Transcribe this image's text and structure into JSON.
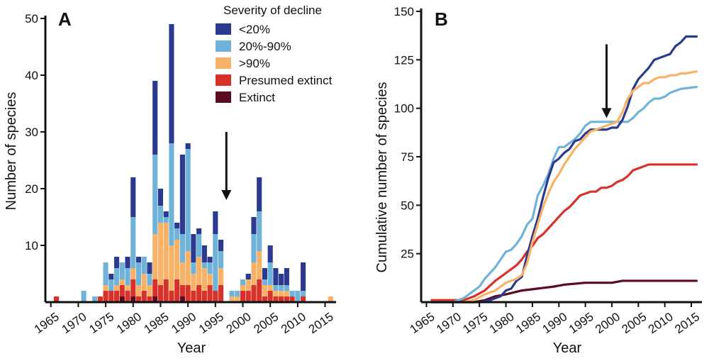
{
  "panel_a_label": "A",
  "panel_b_label": "B",
  "colors": {
    "lt20": "#2b3a8f",
    "p20to90": "#6fb3d9",
    "gt90": "#f7b267",
    "presumed": "#d7312a",
    "extinct": "#5c0a1f",
    "axis": "#111111"
  },
  "chart_data": [
    {
      "type": "bar",
      "stacked": true,
      "panel": "A",
      "xlabel": "Year",
      "ylabel": "Number of species",
      "xlim": [
        1964,
        2017
      ],
      "ylim": [
        0,
        50
      ],
      "xticks": [
        1965,
        1970,
        1975,
        1980,
        1985,
        1990,
        1995,
        2000,
        2005,
        2010,
        2015
      ],
      "yticks": [
        10,
        20,
        30,
        40,
        50
      ],
      "legend": {
        "title": "Severity of decline",
        "placement": "top-right",
        "entries": [
          "<20%",
          "20%-90%",
          ">90%",
          "Presumed extinct",
          "Extinct"
        ]
      },
      "annotation": {
        "type": "arrow",
        "year": 1997,
        "y_top": 30,
        "y_bottom": 18
      },
      "years": [
        1966,
        1967,
        1968,
        1969,
        1970,
        1971,
        1972,
        1973,
        1974,
        1975,
        1976,
        1977,
        1978,
        1979,
        1980,
        1981,
        1982,
        1983,
        1984,
        1985,
        1986,
        1987,
        1988,
        1989,
        1990,
        1991,
        1992,
        1993,
        1994,
        1995,
        1996,
        1997,
        1998,
        1999,
        2000,
        2001,
        2002,
        2003,
        2004,
        2005,
        2006,
        2007,
        2008,
        2009,
        2010,
        2011,
        2012,
        2013,
        2014,
        2015,
        2016
      ],
      "series": [
        {
          "name": "Extinct",
          "color_key": "extinct",
          "values": [
            0,
            0,
            0,
            0,
            0,
            0,
            0,
            0,
            0,
            0,
            0,
            0,
            1,
            0,
            1,
            0,
            0,
            0,
            1,
            0,
            0,
            0,
            0,
            1,
            0,
            0,
            0,
            0,
            0,
            0,
            0,
            0,
            0,
            0,
            0,
            0,
            0,
            0,
            0,
            0,
            0,
            0,
            0,
            0,
            0,
            0,
            0,
            0,
            0,
            0,
            0
          ]
        },
        {
          "name": "Presumed extinct",
          "color_key": "presumed",
          "values": [
            1,
            0,
            0,
            0,
            0,
            0,
            0,
            0,
            1,
            2,
            2,
            2,
            2,
            2,
            3,
            1,
            2,
            1,
            3,
            3,
            4,
            2,
            4,
            2,
            3,
            2,
            3,
            2,
            3,
            2,
            3,
            0,
            0,
            0,
            2,
            2,
            3,
            4,
            1,
            2,
            1,
            1,
            1,
            1,
            0,
            1,
            0,
            0,
            0,
            0,
            0
          ]
        },
        {
          "name": ">90%",
          "color_key": "gt90",
          "values": [
            0,
            0,
            0,
            0,
            0,
            0,
            0,
            0,
            0,
            1,
            0,
            1,
            1,
            1,
            2,
            2,
            3,
            2,
            8,
            11,
            10,
            8,
            7,
            4,
            6,
            3,
            5,
            4,
            2,
            0,
            3,
            0,
            1,
            1,
            1,
            2,
            4,
            5,
            2,
            1,
            1,
            1,
            1,
            0,
            0,
            0,
            0,
            0,
            0,
            0,
            1
          ]
        },
        {
          "name": "20%-90%",
          "color_key": "p20to90",
          "values": [
            0,
            0,
            0,
            0,
            0,
            2,
            0,
            1,
            0,
            4,
            2,
            3,
            3,
            3,
            9,
            4,
            3,
            2,
            14,
            3,
            1,
            18,
            2,
            5,
            18,
            2,
            4,
            1,
            2,
            10,
            3,
            0,
            1,
            1,
            1,
            0,
            5,
            7,
            1,
            4,
            1,
            1,
            1,
            1,
            2,
            1,
            0,
            0,
            0,
            0,
            0
          ]
        },
        {
          "name": "<20%",
          "color_key": "lt20",
          "values": [
            0,
            0,
            0,
            0,
            0,
            0,
            0,
            0,
            0,
            0,
            1,
            2,
            0,
            2,
            7,
            1,
            0,
            2,
            13,
            3,
            1,
            21,
            1,
            14,
            1,
            5,
            1,
            3,
            1,
            4,
            2,
            0,
            0,
            0,
            0,
            1,
            3,
            6,
            2,
            3,
            3,
            2,
            3,
            0,
            0,
            5,
            0,
            0,
            0,
            0,
            0
          ]
        }
      ]
    },
    {
      "type": "line",
      "panel": "B",
      "xlabel": "Year",
      "ylabel": "Cumulative number of species",
      "xlim": [
        1964,
        2017
      ],
      "ylim": [
        0,
        150
      ],
      "xticks": [
        1965,
        1970,
        1975,
        1980,
        1985,
        1990,
        1995,
        2000,
        2005,
        2010,
        2015
      ],
      "yticks": [
        25,
        50,
        75,
        100,
        125,
        150
      ],
      "annotation": {
        "type": "arrow",
        "year": 1999,
        "y_top": 133,
        "y_bottom": 95
      },
      "series": [
        {
          "name": "<20%",
          "color_key": "lt20",
          "points": [
            [
              1966,
              0
            ],
            [
              1975,
              0
            ],
            [
              1977,
              1
            ],
            [
              1979,
              3
            ],
            [
              1980,
              6
            ],
            [
              1981,
              7
            ],
            [
              1982,
              11
            ],
            [
              1983,
              13
            ],
            [
              1984,
              24
            ],
            [
              1985,
              34
            ],
            [
              1986,
              43
            ],
            [
              1987,
              54
            ],
            [
              1988,
              64
            ],
            [
              1989,
              72
            ],
            [
              1990,
              74
            ],
            [
              1991,
              77
            ],
            [
              1992,
              79
            ],
            [
              1993,
              83
            ],
            [
              1994,
              84
            ],
            [
              1995,
              87
            ],
            [
              1996,
              89
            ],
            [
              1999,
              89
            ],
            [
              2000,
              90
            ],
            [
              2001,
              90
            ],
            [
              2002,
              94
            ],
            [
              2003,
              101
            ],
            [
              2004,
              110
            ],
            [
              2005,
              115
            ],
            [
              2006,
              118
            ],
            [
              2007,
              121
            ],
            [
              2008,
              125
            ],
            [
              2009,
              126
            ],
            [
              2010,
              127
            ],
            [
              2011,
              128
            ],
            [
              2012,
              132
            ],
            [
              2013,
              134
            ],
            [
              2014,
              137
            ],
            [
              2016,
              137
            ]
          ]
        },
        {
          "name": "20%-90%",
          "color_key": "p20to90",
          "points": [
            [
              1966,
              0
            ],
            [
              1970,
              0
            ],
            [
              1972,
              2
            ],
            [
              1974,
              6
            ],
            [
              1975,
              8
            ],
            [
              1976,
              12
            ],
            [
              1977,
              15
            ],
            [
              1978,
              18
            ],
            [
              1979,
              22
            ],
            [
              1980,
              26
            ],
            [
              1981,
              27
            ],
            [
              1982,
              30
            ],
            [
              1983,
              34
            ],
            [
              1984,
              40
            ],
            [
              1985,
              43
            ],
            [
              1986,
              55
            ],
            [
              1987,
              60
            ],
            [
              1988,
              66
            ],
            [
              1989,
              74
            ],
            [
              1990,
              80
            ],
            [
              1991,
              80
            ],
            [
              1992,
              82
            ],
            [
              1993,
              84
            ],
            [
              1994,
              87
            ],
            [
              1995,
              91
            ],
            [
              1996,
              93
            ],
            [
              2000,
              93
            ],
            [
              2003,
              93
            ],
            [
              2004,
              95
            ],
            [
              2005,
              98
            ],
            [
              2006,
              100
            ],
            [
              2007,
              103
            ],
            [
              2008,
              105
            ],
            [
              2009,
              105
            ],
            [
              2010,
              106
            ],
            [
              2011,
              108
            ],
            [
              2012,
              109
            ],
            [
              2013,
              110
            ],
            [
              2016,
              111
            ]
          ]
        },
        {
          "name": ">90%",
          "color_key": "gt90",
          "points": [
            [
              1966,
              0
            ],
            [
              1972,
              0
            ],
            [
              1974,
              1
            ],
            [
              1976,
              4
            ],
            [
              1978,
              6
            ],
            [
              1980,
              10
            ],
            [
              1982,
              12
            ],
            [
              1983,
              14
            ],
            [
              1984,
              20
            ],
            [
              1985,
              31
            ],
            [
              1986,
              40
            ],
            [
              1987,
              49
            ],
            [
              1988,
              56
            ],
            [
              1989,
              62
            ],
            [
              1990,
              66
            ],
            [
              1991,
              71
            ],
            [
              1992,
              75
            ],
            [
              1993,
              79
            ],
            [
              1994,
              82
            ],
            [
              1995,
              85
            ],
            [
              1996,
              88
            ],
            [
              1999,
              91
            ],
            [
              2001,
              93
            ],
            [
              2002,
              98
            ],
            [
              2003,
              105
            ],
            [
              2004,
              109
            ],
            [
              2005,
              111
            ],
            [
              2006,
              113
            ],
            [
              2007,
              113
            ],
            [
              2008,
              115
            ],
            [
              2009,
              116
            ],
            [
              2010,
              116
            ],
            [
              2011,
              117
            ],
            [
              2012,
              117
            ],
            [
              2013,
              118
            ],
            [
              2014,
              118
            ],
            [
              2016,
              119
            ]
          ]
        },
        {
          "name": "Presumed extinct",
          "color_key": "presumed",
          "points": [
            [
              1966,
              1
            ],
            [
              1972,
              1
            ],
            [
              1974,
              3
            ],
            [
              1976,
              6
            ],
            [
              1978,
              11
            ],
            [
              1980,
              15
            ],
            [
              1981,
              17
            ],
            [
              1982,
              19
            ],
            [
              1983,
              22
            ],
            [
              1984,
              26
            ],
            [
              1985,
              29
            ],
            [
              1986,
              33
            ],
            [
              1987,
              35
            ],
            [
              1988,
              38
            ],
            [
              1989,
              41
            ],
            [
              1990,
              44
            ],
            [
              1991,
              47
            ],
            [
              1992,
              49
            ],
            [
              1993,
              52
            ],
            [
              1994,
              55
            ],
            [
              1996,
              57
            ],
            [
              1997,
              57
            ],
            [
              1998,
              59
            ],
            [
              1999,
              59
            ],
            [
              2000,
              60
            ],
            [
              2001,
              62
            ],
            [
              2002,
              63
            ],
            [
              2003,
              65
            ],
            [
              2004,
              68
            ],
            [
              2006,
              70
            ],
            [
              2007,
              71
            ],
            [
              2016,
              71
            ]
          ]
        },
        {
          "name": "Extinct",
          "color_key": "extinct",
          "points": [
            [
              1966,
              0
            ],
            [
              1974,
              0
            ],
            [
              1976,
              1
            ],
            [
              1978,
              3
            ],
            [
              1980,
              4
            ],
            [
              1983,
              6
            ],
            [
              1986,
              7
            ],
            [
              1989,
              8
            ],
            [
              1991,
              9
            ],
            [
              1995,
              10
            ],
            [
              2000,
              10
            ],
            [
              2002,
              11
            ],
            [
              2016,
              11
            ]
          ]
        }
      ]
    }
  ]
}
